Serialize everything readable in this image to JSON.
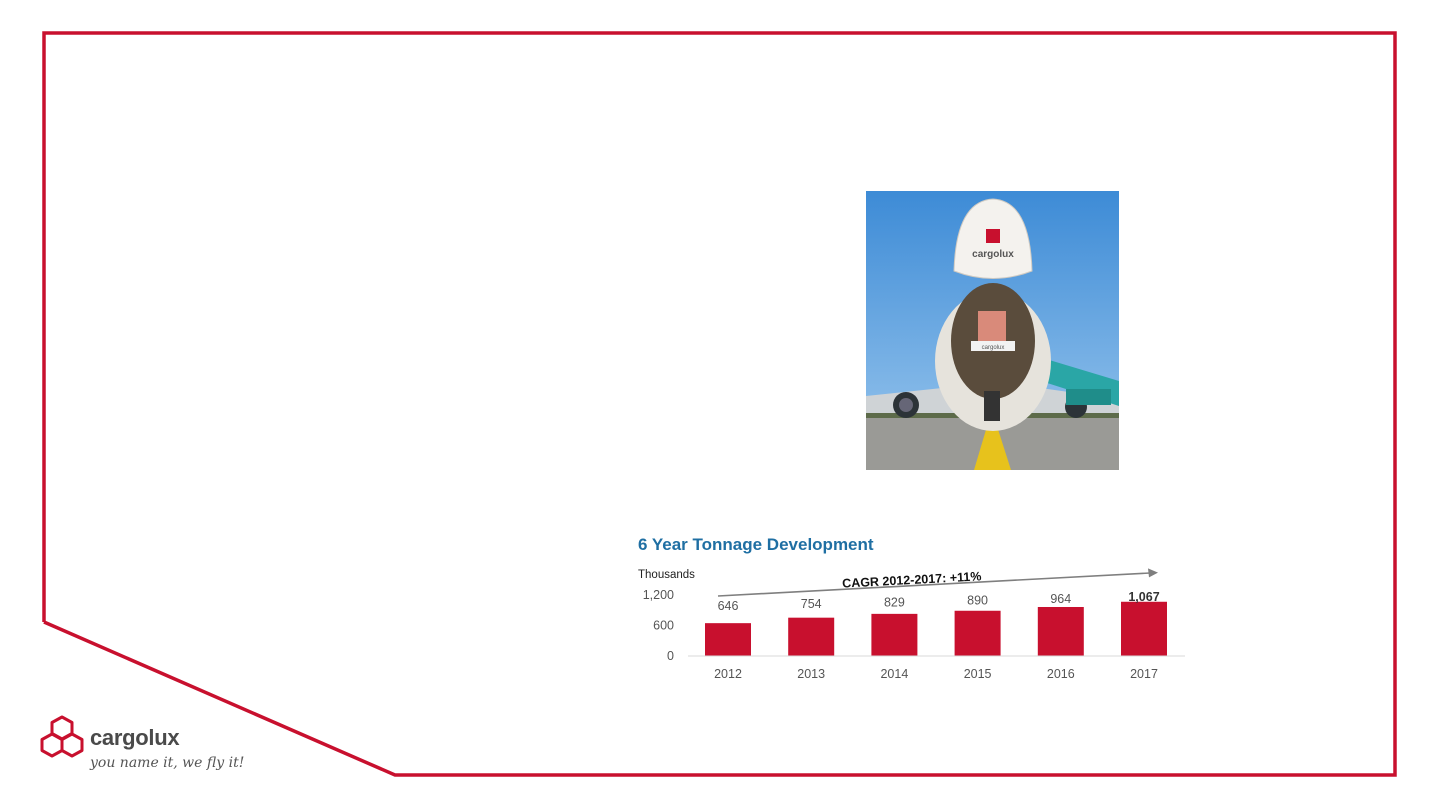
{
  "colors": {
    "frame": "#c8102e",
    "bar": "#c8102e",
    "title": "#1f6fa3",
    "axis_text": "#555555",
    "trend_arrow": "#7f7f7f"
  },
  "photo": {
    "description_icon": "aircraft-nose-open-icon",
    "nose_text": "cargolux"
  },
  "chart_data": {
    "type": "bar",
    "title": "6 Year Tonnage Development",
    "unit_label": "Thousands",
    "categories": [
      "2012",
      "2013",
      "2014",
      "2015",
      "2016",
      "2017"
    ],
    "values": [
      646,
      754,
      829,
      890,
      964,
      1067
    ],
    "value_labels": [
      "646",
      "754",
      "829",
      "890",
      "964",
      "1,067"
    ],
    "yticks": [
      "1,200",
      "600",
      "0"
    ],
    "ylim": [
      0,
      1200
    ],
    "annotation": "CAGR 2012-2017: +11%",
    "grid": false,
    "legend": "none"
  },
  "logo": {
    "name": "cargolux",
    "tagline": "you name it, we fly it!"
  }
}
